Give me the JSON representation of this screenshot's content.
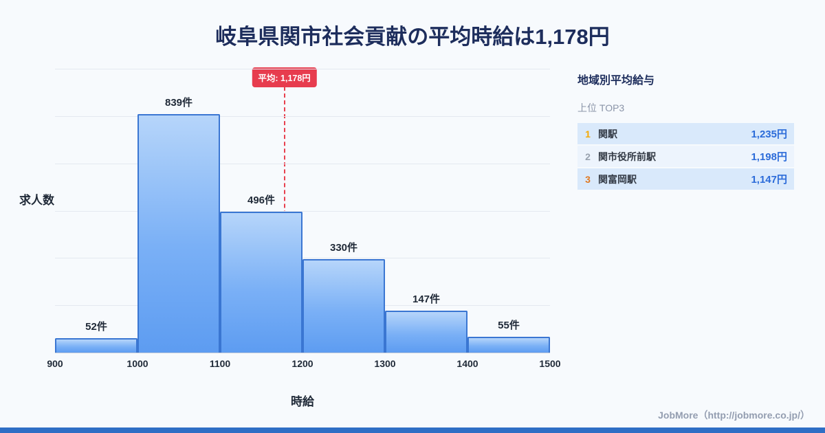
{
  "page": {
    "title": "岐阜県関市社会貢献の平均時給は1,178円",
    "footer": "JobMore（http://jobmore.co.jp/）"
  },
  "chart_data": {
    "type": "bar",
    "title": "岐阜県関市社会貢献の平均時給は1,178円",
    "xlabel": "時給",
    "ylabel": "求人数",
    "bins": [
      900,
      1000,
      1100,
      1200,
      1300,
      1400,
      1500
    ],
    "categories": [
      "900-1000",
      "1000-1100",
      "1100-1200",
      "1200-1300",
      "1300-1400",
      "1400-1500"
    ],
    "values": [
      52,
      839,
      496,
      330,
      147,
      55
    ],
    "bar_labels": [
      "52件",
      "839件",
      "496件",
      "330件",
      "147件",
      "55件"
    ],
    "average": 1178,
    "average_label": "平均: 1,178円",
    "xlim": [
      900,
      1500
    ],
    "ylim": [
      0,
      1000
    ],
    "grid": true,
    "legend": "none",
    "bar_color_top": "#b6d5fa",
    "bar_color_bottom": "#5d9cf1",
    "bar_border_color": "#3a76d2",
    "average_line_color": "#e8404e"
  },
  "side_panel": {
    "title": "地域別平均給与",
    "subtitle": "上位 TOP3",
    "rows": [
      {
        "rank": "1",
        "name": "関駅",
        "price": "1,235円"
      },
      {
        "rank": "2",
        "name": "関市役所前駅",
        "price": "1,198円"
      },
      {
        "rank": "3",
        "name": "関富岡駅",
        "price": "1,147円"
      }
    ]
  }
}
